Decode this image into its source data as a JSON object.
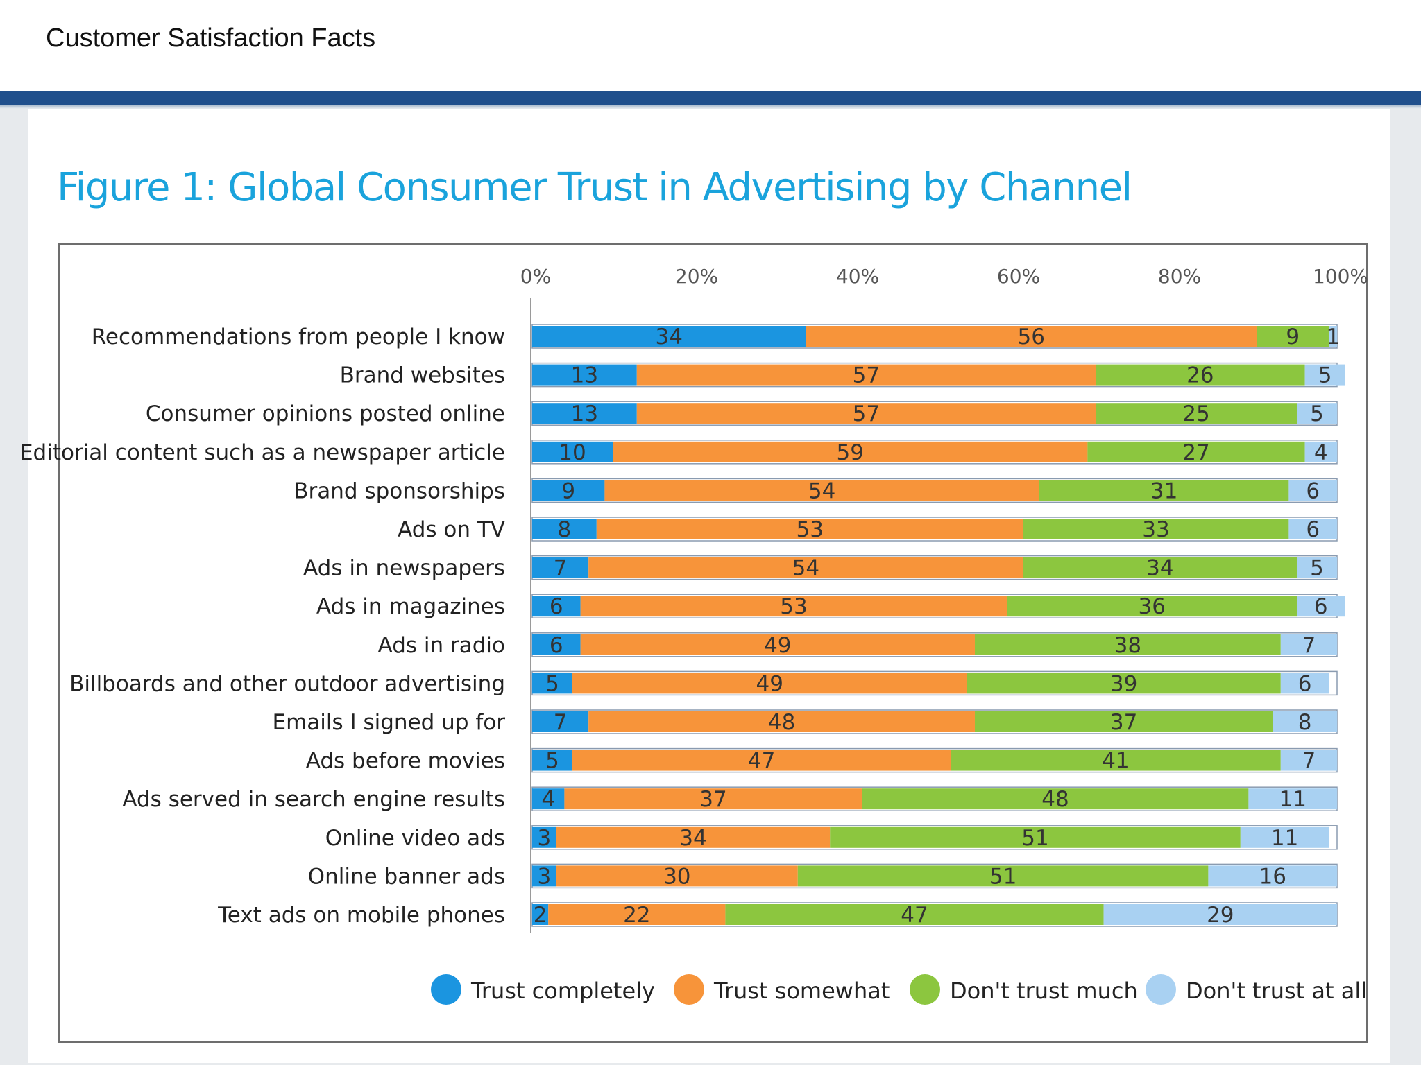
{
  "slide": {
    "title": "Customer Satisfaction Facts"
  },
  "colors": {
    "header_bar": "#1f4f8c",
    "figure_title": "#1aa3dc",
    "frame": "#6d6d6d"
  },
  "chart_data": {
    "type": "bar",
    "orientation": "horizontal",
    "stacked": true,
    "title": "Figure 1: Global Consumer Trust in Advertising by Channel",
    "xlim": [
      0,
      100
    ],
    "x_ticks": [
      "0%",
      "20%",
      "40%",
      "60%",
      "80%",
      "100%"
    ],
    "legend_position": "bottom",
    "categories": [
      "Recommendations from people I know",
      "Brand websites",
      "Consumer opinions posted online",
      "Editorial content such as a newspaper article",
      "Brand sponsorships",
      "Ads on TV",
      "Ads in newspapers",
      "Ads in magazines",
      "Ads in radio",
      "Billboards and other outdoor advertising",
      "Emails I signed up for",
      "Ads before movies",
      "Ads served in search engine results",
      "Online video ads",
      "Online banner ads",
      "Text ads on mobile phones"
    ],
    "series": [
      {
        "name": "Trust completely",
        "color": "#1b95e0",
        "values": [
          34,
          13,
          13,
          10,
          9,
          8,
          7,
          6,
          6,
          5,
          7,
          5,
          4,
          3,
          3,
          2
        ]
      },
      {
        "name": "Trust somewhat",
        "color": "#f7943a",
        "values": [
          56,
          57,
          57,
          59,
          54,
          53,
          54,
          53,
          49,
          49,
          48,
          47,
          37,
          34,
          30,
          22
        ]
      },
      {
        "name": "Don't trust much",
        "color": "#8cc63f",
        "values": [
          9,
          26,
          25,
          27,
          31,
          33,
          34,
          36,
          38,
          39,
          37,
          41,
          48,
          51,
          51,
          47
        ]
      },
      {
        "name": "Don't trust at all",
        "color": "#a9d1f2",
        "values": [
          1,
          5,
          5,
          4,
          6,
          6,
          5,
          6,
          7,
          6,
          8,
          7,
          11,
          11,
          16,
          29
        ]
      }
    ]
  }
}
